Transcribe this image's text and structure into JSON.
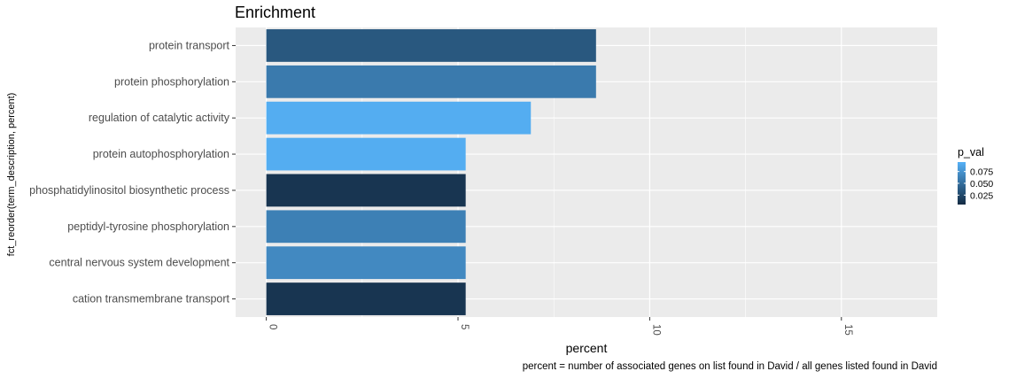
{
  "chart_data": {
    "type": "bar",
    "orientation": "horizontal",
    "title": "Enrichment",
    "xlabel": "percent",
    "ylabel": "fct_reorder(term_description, percent)",
    "caption": "percent = number of associated genes on list found in David / all genes listed found in David",
    "xlim": [
      -0.8,
      17.5
    ],
    "xticks": [
      0,
      5,
      10,
      15
    ],
    "xtick_labels": [
      "0",
      "5",
      "10",
      "15"
    ],
    "grid": true,
    "categories": [
      "protein transport",
      "protein phosphorylation",
      "regulation of catalytic activity",
      "protein autophosphorylation",
      "phosphatidylinositol biosynthetic process",
      "peptidyl-tyrosine phosphorylation",
      "central nervous system development",
      "cation transmembrane transport"
    ],
    "values": [
      8.6,
      8.6,
      6.9,
      5.2,
      5.2,
      5.2,
      5.2,
      5.2
    ],
    "p_val": [
      0.035,
      0.058,
      0.092,
      0.092,
      0.012,
      0.062,
      0.068,
      0.012
    ],
    "fill_legend": {
      "title": "p_val",
      "breaks": [
        0.075,
        0.05,
        0.025
      ],
      "labels": [
        "0.075",
        "0.050",
        "0.025"
      ],
      "range": [
        0.005,
        0.095
      ],
      "low_color": "#132b43",
      "high_color": "#56b1f7",
      "placement": "right"
    },
    "panel_background": "#ebebeb",
    "grid_color": "#ffffff"
  }
}
